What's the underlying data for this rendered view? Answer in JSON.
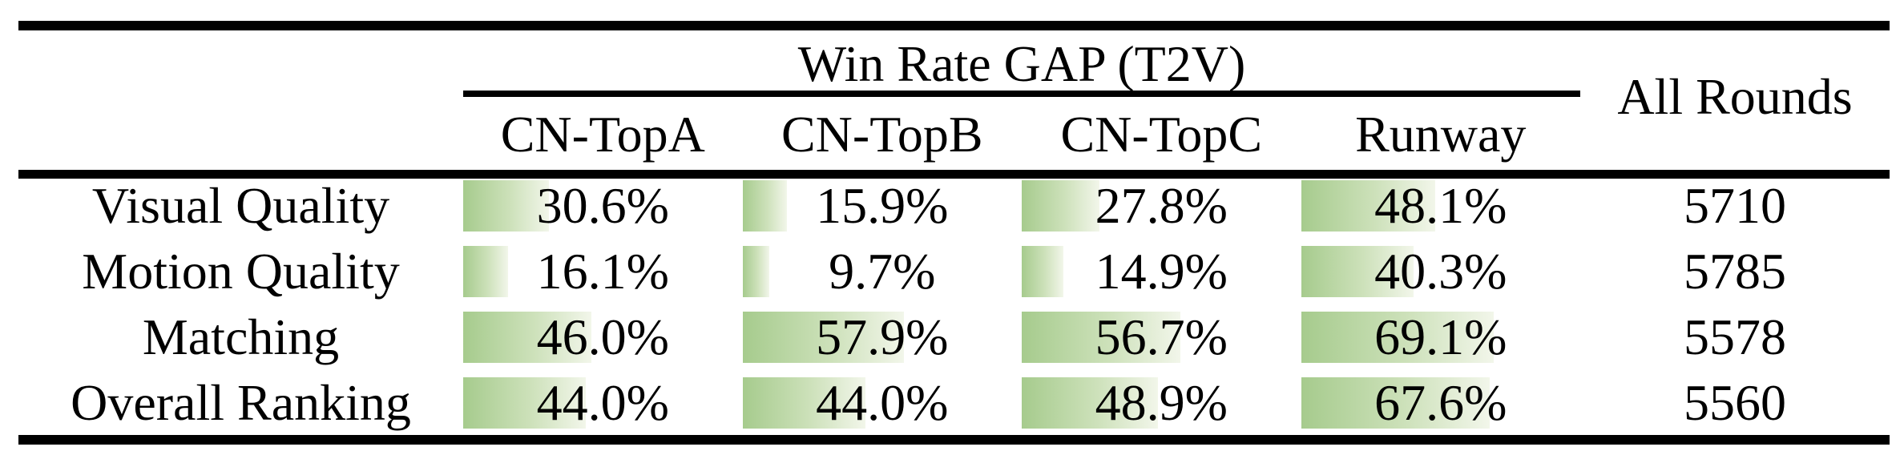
{
  "figure": {
    "group_header": "Win Rate GAP (T2V)",
    "all_rounds_header": "All Rounds",
    "model_columns": [
      "CN-TopA",
      "CN-TopB",
      "CN-TopC",
      "Runway"
    ],
    "rows": [
      {
        "label": "Visual Quality",
        "cells": [
          {
            "pct": 30.6,
            "text": "30.6%"
          },
          {
            "pct": 15.9,
            "text": "15.9%"
          },
          {
            "pct": 27.8,
            "text": "27.8%"
          },
          {
            "pct": 48.1,
            "text": "48.1%"
          }
        ],
        "all_rounds": "5710"
      },
      {
        "label": "Motion Quality",
        "cells": [
          {
            "pct": 16.1,
            "text": "16.1%"
          },
          {
            "pct": 9.7,
            "text": "9.7%"
          },
          {
            "pct": 14.9,
            "text": "14.9%"
          },
          {
            "pct": 40.3,
            "text": "40.3%"
          }
        ],
        "all_rounds": "5785"
      },
      {
        "label": "Matching",
        "cells": [
          {
            "pct": 46.0,
            "text": "46.0%"
          },
          {
            "pct": 57.9,
            "text": "57.9%"
          },
          {
            "pct": 56.7,
            "text": "56.7%"
          },
          {
            "pct": 69.1,
            "text": "69.1%"
          }
        ],
        "all_rounds": "5578"
      },
      {
        "label": "Overall Ranking",
        "cells": [
          {
            "pct": 44.0,
            "text": "44.0%"
          },
          {
            "pct": 44.0,
            "text": "44.0%"
          },
          {
            "pct": 48.9,
            "text": "48.9%"
          },
          {
            "pct": 67.6,
            "text": "67.6%"
          }
        ],
        "all_rounds": "5560"
      }
    ]
  },
  "colors": {
    "bar_green_start": "#a6cb8d",
    "bar_green_end": "#f2f6ea",
    "rule_black": "#000000"
  },
  "chart_data": {
    "type": "table",
    "title": "Win Rate GAP (T2V)",
    "columns": [
      "CN-TopA",
      "CN-TopB",
      "CN-TopC",
      "Runway",
      "All Rounds"
    ],
    "categories": [
      "Visual Quality",
      "Motion Quality",
      "Matching",
      "Overall Ranking"
    ],
    "series": [
      {
        "name": "CN-TopA",
        "values": [
          30.6,
          16.1,
          46.0,
          44.0
        ]
      },
      {
        "name": "CN-TopB",
        "values": [
          15.9,
          9.7,
          57.9,
          44.0
        ]
      },
      {
        "name": "CN-TopC",
        "values": [
          27.8,
          14.9,
          56.7,
          48.9
        ]
      },
      {
        "name": "Runway",
        "values": [
          48.1,
          40.3,
          69.1,
          67.6
        ]
      },
      {
        "name": "All Rounds",
        "values": [
          5710,
          5785,
          5578,
          5560
        ]
      }
    ],
    "value_unit": "% (win rate gap), counts for All Rounds",
    "layout_hints": "booktabs-style paper table; green left-anchored gradient data bars behind percentage cells, bar width proportional to value (100% = full column width)"
  }
}
